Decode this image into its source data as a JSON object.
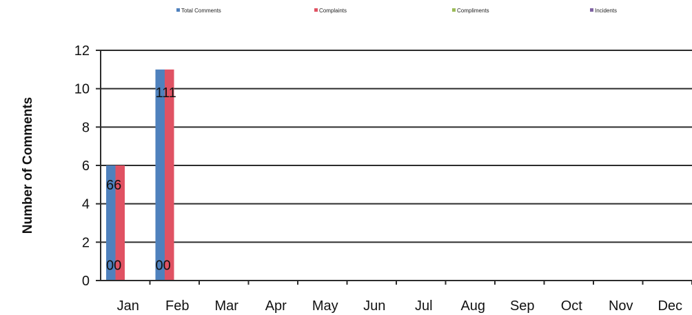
{
  "chart_data": {
    "type": "bar",
    "ylabel": "Number of Comments",
    "xlabel": "",
    "ylim": [
      0,
      12
    ],
    "yticks": [
      "0",
      "2",
      "4",
      "6",
      "8",
      "10",
      "12"
    ],
    "categories": [
      "Jan",
      "Feb",
      "Mar",
      "Apr",
      "May",
      "Jun",
      "Jul",
      "Aug",
      "Sep",
      "Oct",
      "Nov",
      "Dec"
    ],
    "series": [
      {
        "name": "Total Comments",
        "color": "#4f81bd",
        "values": [
          6,
          11,
          null,
          null,
          null,
          null,
          null,
          null,
          null,
          null,
          null,
          null
        ]
      },
      {
        "name": "Complaints",
        "color": "#e05263",
        "values": [
          6,
          11,
          null,
          null,
          null,
          null,
          null,
          null,
          null,
          null,
          null,
          null
        ]
      },
      {
        "name": "Compliments",
        "color": "#9bbb59",
        "values": [
          0,
          0,
          null,
          null,
          null,
          null,
          null,
          null,
          null,
          null,
          null,
          null
        ]
      },
      {
        "name": "Incidents",
        "color": "#8064a2",
        "values": [
          0,
          0,
          null,
          null,
          null,
          null,
          null,
          null,
          null,
          null,
          null,
          null
        ]
      }
    ],
    "data_labels": [
      {
        "text": "66",
        "category": "Jan",
        "y": 5
      },
      {
        "text": "00",
        "category": "Jan",
        "y": 0.8
      },
      {
        "text": "111",
        "category": "Feb",
        "y": 9.8
      },
      {
        "text": "00",
        "category": "Feb",
        "y": 0.8
      }
    ],
    "grid": true,
    "legend_position": "top"
  }
}
